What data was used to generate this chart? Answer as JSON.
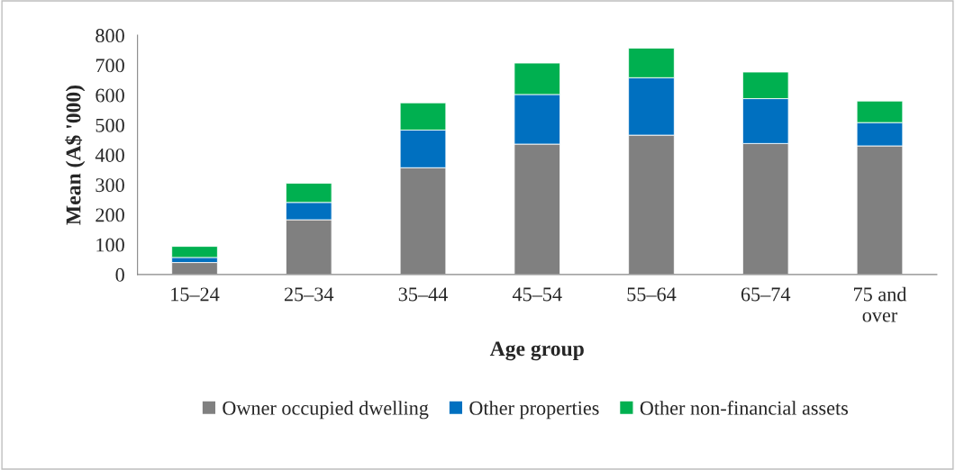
{
  "chart_data": {
    "type": "bar",
    "stacked": true,
    "xlabel": "Age group",
    "ylabel": "Mean (A$ '000)",
    "categories": [
      "15–24",
      "25–34",
      "35–44",
      "45–54",
      "55–64",
      "65–74",
      "75 and\nover"
    ],
    "series": [
      {
        "name": "Owner occupied dwelling",
        "color": "#808080",
        "values": [
          40,
          183,
          357,
          436,
          466,
          438,
          430
        ]
      },
      {
        "name": "Other properties",
        "color": "#0070c0",
        "values": [
          17,
          58,
          126,
          166,
          192,
          150,
          78
        ]
      },
      {
        "name": "Other non-financial assets",
        "color": "#00b050",
        "values": [
          37,
          64,
          91,
          105,
          99,
          89,
          72
        ]
      }
    ],
    "ylim": [
      0,
      800
    ],
    "yticks": [
      0,
      100,
      200,
      300,
      400,
      500,
      600,
      700,
      800
    ],
    "grid": false,
    "legend": "bottom"
  }
}
